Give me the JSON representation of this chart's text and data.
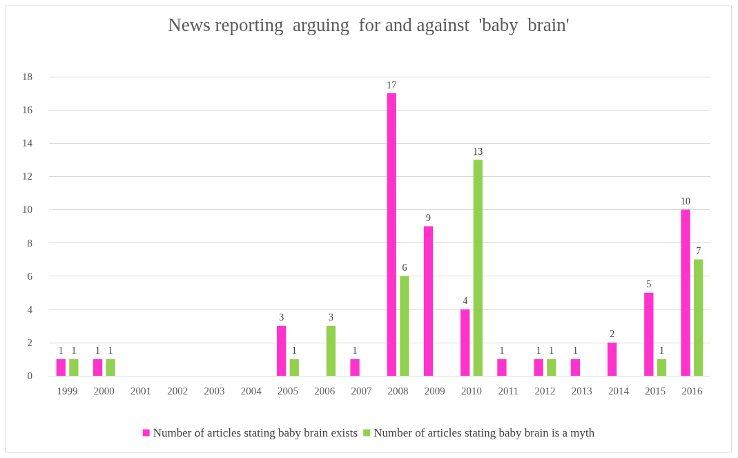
{
  "chart_data": {
    "type": "bar",
    "title": "News reporting  arguing  for and against  'baby  brain'",
    "categories": [
      "1999",
      "2000",
      "2001",
      "2002",
      "2003",
      "2004",
      "2005",
      "2006",
      "2007",
      "2008",
      "2009",
      "2010",
      "2011",
      "2012",
      "2013",
      "2014",
      "2015",
      "2016"
    ],
    "series": [
      {
        "name": "Number of articles stating baby brain exists",
        "color": "#ff33cc",
        "values": [
          1,
          1,
          0,
          0,
          0,
          0,
          3,
          0,
          1,
          17,
          9,
          4,
          1,
          1,
          1,
          2,
          5,
          10
        ],
        "value_labels": [
          "1",
          "1",
          null,
          null,
          null,
          null,
          "3",
          null,
          "1",
          "17",
          "9",
          "4",
          "1",
          "1",
          "1",
          "2",
          "5",
          "10"
        ]
      },
      {
        "name": "Number of articles stating baby brain is a myth",
        "color": "#92d050",
        "values": [
          1,
          1,
          0,
          0,
          0,
          0,
          1,
          3,
          0,
          6,
          0,
          13,
          0,
          1,
          0,
          0,
          1,
          7
        ],
        "value_labels": [
          "1",
          "1",
          null,
          null,
          null,
          null,
          "1",
          "3",
          null,
          "6",
          null,
          "13",
          null,
          "1",
          null,
          null,
          "1",
          "7"
        ]
      }
    ],
    "ylim": [
      0,
      18
    ],
    "yticks": [
      0,
      2,
      4,
      6,
      8,
      10,
      12,
      14,
      16,
      18
    ],
    "grid": "y",
    "legend": "bottom"
  }
}
